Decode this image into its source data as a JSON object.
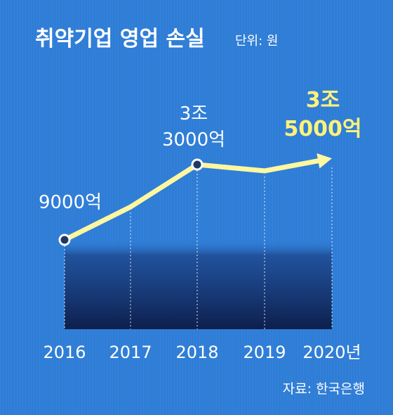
{
  "title": "취약기업 영업 손실",
  "unit_note": "단위: 원",
  "source": "자료: 한국은행",
  "colors": {
    "background": "#2f7ed8",
    "line": "#fdf7a0",
    "highlight_text": "#fff27a",
    "marker_fill": "#1d3a66",
    "area_bottom": "#0d1f4d"
  },
  "chart_data": {
    "type": "line",
    "title": "취약기업 영업 손실",
    "categories": [
      "2016",
      "2017",
      "2018",
      "2019",
      "2020년"
    ],
    "values_won_eok": [
      9000,
      19500,
      33000,
      31000,
      35000
    ],
    "data_labels": [
      {
        "category": "2016",
        "lines": [
          "9000억"
        ],
        "highlight": false
      },
      {
        "category": "2018",
        "lines": [
          "3조",
          "3000억"
        ],
        "highlight": false
      },
      {
        "category": "2020년",
        "lines": [
          "3조",
          "5000억"
        ],
        "highlight": true
      }
    ],
    "markers": [
      "2016",
      "2018"
    ],
    "arrow_end": "2020년",
    "grid": "vertical dotted lines per year",
    "legend": "none",
    "unit": "원"
  }
}
